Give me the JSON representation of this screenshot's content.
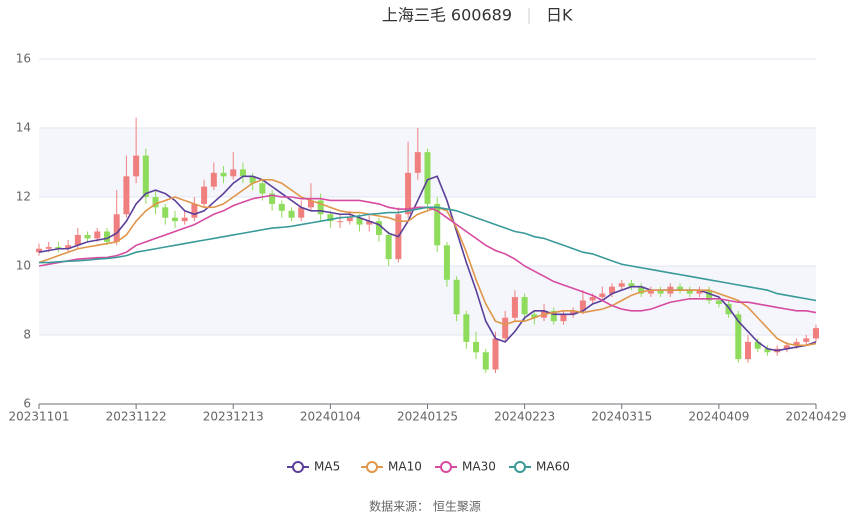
{
  "chart_data": {
    "type": "candlestick",
    "title": "上海三毛 600689",
    "subtitle": "日K",
    "source": "数据来源： 恒生聚源",
    "categories": [
      "20231101",
      null,
      null,
      null,
      null,
      null,
      null,
      null,
      null,
      null,
      "20231122",
      null,
      null,
      null,
      null,
      null,
      null,
      null,
      null,
      null,
      "20231213",
      null,
      null,
      null,
      null,
      null,
      null,
      null,
      null,
      null,
      "20240104",
      null,
      null,
      null,
      null,
      null,
      null,
      null,
      null,
      null,
      "20240125",
      null,
      null,
      null,
      null,
      null,
      null,
      null,
      null,
      null,
      "20240223",
      null,
      null,
      null,
      null,
      null,
      null,
      null,
      null,
      null,
      "20240315",
      null,
      null,
      null,
      null,
      null,
      null,
      null,
      null,
      null,
      "20240409",
      null,
      null,
      null,
      null,
      null,
      null,
      null,
      null,
      null,
      "20240429"
    ],
    "open": [
      10.4,
      10.5,
      10.55,
      10.5,
      10.6,
      10.9,
      10.8,
      11.0,
      10.7,
      11.5,
      12.6,
      13.2,
      12.0,
      11.7,
      11.4,
      11.3,
      11.4,
      11.8,
      12.3,
      12.7,
      12.6,
      12.8,
      12.6,
      12.4,
      12.1,
      11.8,
      11.6,
      11.4,
      11.7,
      11.9,
      11.5,
      11.3,
      11.3,
      11.4,
      11.2,
      11.3,
      10.9,
      10.2,
      11.5,
      12.7,
      13.3,
      11.8,
      10.6,
      9.6,
      8.6,
      7.8,
      7.5,
      7.0,
      7.9,
      8.5,
      9.1,
      8.6,
      8.5,
      8.7,
      8.4,
      8.6,
      8.7,
      9.0,
      9.1,
      9.2,
      9.4,
      9.5,
      9.4,
      9.2,
      9.3,
      9.2,
      9.4,
      9.3,
      9.2,
      9.3,
      9.0,
      8.9,
      8.6,
      7.3,
      7.8,
      7.6,
      7.5,
      7.6,
      7.7,
      7.8,
      7.9
    ],
    "high": [
      10.65,
      10.7,
      10.7,
      10.75,
      11.1,
      11.0,
      11.1,
      11.1,
      12.2,
      13.2,
      14.3,
      13.4,
      12.2,
      11.8,
      11.6,
      11.6,
      12.0,
      12.5,
      13.0,
      12.9,
      13.3,
      13.0,
      12.7,
      12.5,
      12.2,
      11.9,
      11.7,
      11.9,
      12.4,
      12.1,
      11.6,
      11.5,
      11.6,
      11.5,
      11.5,
      11.4,
      11.0,
      11.7,
      13.6,
      14.0,
      13.4,
      12.0,
      10.7,
      9.7,
      8.7,
      8.1,
      7.6,
      8.1,
      8.7,
      9.3,
      9.2,
      8.7,
      8.9,
      8.8,
      8.7,
      8.8,
      9.3,
      9.2,
      9.4,
      9.5,
      9.6,
      9.6,
      9.5,
      9.4,
      9.4,
      9.5,
      9.5,
      9.4,
      9.4,
      9.4,
      9.1,
      9.0,
      8.7,
      8.0,
      7.9,
      7.7,
      7.7,
      7.8,
      7.9,
      8.0,
      8.3
    ],
    "low": [
      10.3,
      10.4,
      10.4,
      10.4,
      10.5,
      10.7,
      10.7,
      10.6,
      10.6,
      11.4,
      12.4,
      11.8,
      11.5,
      11.2,
      11.1,
      11.2,
      11.3,
      11.7,
      12.2,
      12.4,
      12.5,
      12.4,
      12.2,
      11.9,
      11.6,
      11.4,
      11.3,
      11.3,
      11.6,
      11.3,
      11.1,
      11.1,
      11.2,
      11.0,
      11.0,
      10.7,
      10.0,
      10.1,
      11.4,
      12.5,
      11.6,
      10.4,
      9.4,
      8.4,
      7.6,
      7.3,
      6.9,
      6.9,
      7.8,
      8.4,
      8.4,
      8.3,
      8.4,
      8.3,
      8.3,
      8.5,
      8.6,
      8.9,
      9.0,
      9.1,
      9.3,
      9.3,
      9.1,
      9.1,
      9.1,
      9.1,
      9.2,
      9.1,
      9.1,
      8.9,
      8.8,
      8.5,
      7.2,
      7.2,
      7.5,
      7.4,
      7.4,
      7.5,
      7.6,
      7.7,
      7.8
    ],
    "close": [
      10.5,
      10.55,
      10.5,
      10.6,
      10.9,
      10.8,
      11.0,
      10.7,
      11.5,
      12.6,
      13.2,
      12.0,
      11.7,
      11.4,
      11.3,
      11.4,
      11.8,
      12.3,
      12.7,
      12.6,
      12.8,
      12.6,
      12.4,
      12.1,
      11.8,
      11.6,
      11.4,
      11.7,
      11.9,
      11.5,
      11.3,
      11.3,
      11.4,
      11.2,
      11.3,
      10.9,
      10.2,
      11.5,
      12.7,
      13.3,
      11.8,
      10.6,
      9.6,
      8.6,
      7.8,
      7.5,
      7.0,
      7.9,
      8.5,
      9.1,
      8.6,
      8.5,
      8.7,
      8.4,
      8.6,
      8.7,
      9.0,
      9.1,
      9.2,
      9.4,
      9.5,
      9.4,
      9.2,
      9.3,
      9.2,
      9.4,
      9.3,
      9.2,
      9.3,
      9.0,
      8.9,
      8.6,
      7.3,
      7.8,
      7.6,
      7.5,
      7.6,
      7.7,
      7.8,
      7.9,
      8.2
    ],
    "up_color": "#f08080",
    "down_color": "#8fdc5c",
    "series": [
      {
        "name": "MA5",
        "color": "#5b3f9a",
        "values": [
          10.4,
          10.45,
          10.5,
          10.5,
          10.6,
          10.7,
          10.75,
          10.8,
          10.95,
          11.3,
          11.8,
          12.1,
          12.2,
          12.1,
          11.9,
          11.6,
          11.5,
          11.6,
          11.85,
          12.1,
          12.4,
          12.6,
          12.6,
          12.5,
          12.3,
          12.1,
          11.9,
          11.7,
          11.6,
          11.6,
          11.55,
          11.5,
          11.5,
          11.4,
          11.3,
          11.2,
          10.95,
          10.85,
          11.3,
          11.9,
          12.5,
          12.6,
          11.9,
          11.0,
          10.1,
          9.3,
          8.4,
          7.9,
          7.8,
          8.1,
          8.5,
          8.7,
          8.7,
          8.6,
          8.6,
          8.6,
          8.7,
          8.9,
          9.0,
          9.2,
          9.3,
          9.4,
          9.4,
          9.3,
          9.3,
          9.3,
          9.3,
          9.3,
          9.3,
          9.2,
          9.1,
          8.8,
          8.4,
          8.1,
          7.8,
          7.6,
          7.55,
          7.6,
          7.65,
          7.7,
          7.8
        ]
      },
      {
        "name": "MA10",
        "color": "#e0964a",
        "values": [
          10.1,
          10.2,
          10.3,
          10.4,
          10.5,
          10.55,
          10.6,
          10.65,
          10.7,
          10.9,
          11.3,
          11.6,
          11.8,
          11.9,
          12.0,
          11.9,
          11.8,
          11.7,
          11.7,
          11.8,
          12.0,
          12.2,
          12.4,
          12.5,
          12.5,
          12.4,
          12.2,
          12.0,
          11.9,
          11.8,
          11.7,
          11.6,
          11.55,
          11.55,
          11.5,
          11.45,
          11.4,
          11.3,
          11.3,
          11.5,
          11.6,
          11.7,
          11.6,
          11.1,
          10.4,
          9.6,
          8.9,
          8.4,
          8.3,
          8.4,
          8.4,
          8.5,
          8.6,
          8.65,
          8.7,
          8.7,
          8.65,
          8.7,
          8.75,
          8.85,
          9.0,
          9.15,
          9.25,
          9.3,
          9.3,
          9.3,
          9.3,
          9.3,
          9.3,
          9.3,
          9.2,
          9.1,
          9.0,
          8.8,
          8.5,
          8.2,
          7.9,
          7.75,
          7.7,
          7.7,
          7.75
        ]
      },
      {
        "name": "MA30",
        "color": "#d64ba0",
        "values": [
          10.0,
          10.05,
          10.1,
          10.15,
          10.2,
          10.22,
          10.24,
          10.25,
          10.3,
          10.4,
          10.6,
          10.7,
          10.8,
          10.9,
          11.0,
          11.1,
          11.2,
          11.35,
          11.5,
          11.6,
          11.75,
          11.85,
          11.95,
          12.0,
          12.05,
          12.0,
          12.0,
          11.95,
          11.95,
          11.95,
          11.9,
          11.9,
          11.9,
          11.9,
          11.85,
          11.8,
          11.7,
          11.65,
          11.65,
          11.7,
          11.7,
          11.6,
          11.4,
          11.2,
          11.0,
          10.8,
          10.6,
          10.45,
          10.35,
          10.2,
          10.0,
          9.85,
          9.7,
          9.55,
          9.45,
          9.35,
          9.25,
          9.15,
          9.0,
          8.85,
          8.75,
          8.7,
          8.7,
          8.75,
          8.85,
          8.95,
          9.0,
          9.05,
          9.05,
          9.05,
          9.05,
          9.0,
          8.95,
          8.95,
          8.9,
          8.85,
          8.8,
          8.75,
          8.7,
          8.7,
          8.65
        ]
      },
      {
        "name": "MA60",
        "color": "#3a9a9a",
        "values": [
          10.1,
          10.1,
          10.12,
          10.14,
          10.15,
          10.17,
          10.2,
          10.22,
          10.25,
          10.3,
          10.4,
          10.45,
          10.5,
          10.55,
          10.6,
          10.65,
          10.7,
          10.75,
          10.8,
          10.85,
          10.9,
          10.95,
          11.0,
          11.05,
          11.1,
          11.12,
          11.15,
          11.2,
          11.25,
          11.3,
          11.35,
          11.4,
          11.42,
          11.45,
          11.5,
          11.52,
          11.55,
          11.55,
          11.6,
          11.65,
          11.7,
          11.7,
          11.65,
          11.6,
          11.5,
          11.4,
          11.3,
          11.2,
          11.1,
          11.0,
          10.95,
          10.85,
          10.8,
          10.7,
          10.6,
          10.5,
          10.4,
          10.35,
          10.25,
          10.15,
          10.05,
          10.0,
          9.95,
          9.9,
          9.85,
          9.8,
          9.75,
          9.7,
          9.65,
          9.6,
          9.55,
          9.5,
          9.45,
          9.4,
          9.35,
          9.3,
          9.2,
          9.15,
          9.1,
          9.05,
          9.0
        ]
      }
    ],
    "ylim": [
      6,
      16
    ],
    "yticks": [
      6,
      8,
      10,
      12,
      14,
      16
    ],
    "grid": true,
    "legend": "bottom"
  }
}
